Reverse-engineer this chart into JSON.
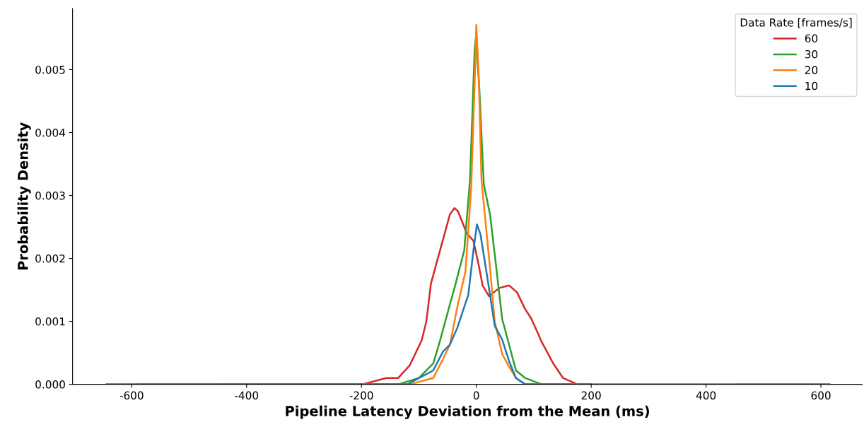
{
  "chart_data": {
    "type": "line",
    "xlabel": "Pipeline Latency Deviation from the Mean (ms)",
    "ylabel": "Probability Density",
    "legend_title": "Data Rate [frames/s]",
    "legend": "top right",
    "grid": false,
    "marker": "none",
    "line_style": "solid",
    "xlim": [
      -703,
      672
    ],
    "ylim": [
      0,
      0.00597
    ],
    "xticks": [
      -600,
      -400,
      -200,
      0,
      200,
      400,
      600
    ],
    "yticks": [
      {
        "value": 0,
        "label": "0.000"
      },
      {
        "value": 0.001,
        "label": "0.001"
      },
      {
        "value": 0.002,
        "label": "0.002"
      },
      {
        "value": 0.003,
        "label": "0.003"
      },
      {
        "value": 0.004,
        "label": "0.004"
      },
      {
        "value": 0.005,
        "label": "0.005"
      }
    ],
    "series": [
      {
        "name": "60",
        "color": "#d62728",
        "x": [
          -644,
          -239,
          -198,
          -157,
          -136,
          -116,
          -95,
          -87,
          -79,
          -70,
          -58,
          -46,
          -38,
          -32,
          -21,
          -17,
          -5,
          4,
          11,
          22,
          40,
          57,
          71,
          84,
          96,
          114,
          134,
          151,
          176,
          200,
          615
        ],
        "values": [
          0,
          0,
          0,
          0.0001,
          0.0001,
          0.0003,
          0.0007,
          0.001,
          0.0016,
          0.0019,
          0.0023,
          0.0027,
          0.0028,
          0.00275,
          0.0025,
          0.0024,
          0.00228,
          0.0019,
          0.00157,
          0.0014,
          0.00153,
          0.00157,
          0.00146,
          0.00121,
          0.00104,
          0.00067,
          0.00033,
          0.0001,
          0,
          0,
          0
        ]
      },
      {
        "name": "30",
        "color": "#2ca02c",
        "x": [
          -592,
          -136,
          -100,
          -75,
          -63,
          -46,
          -38,
          -21,
          -11,
          -3,
          -1,
          5,
          13,
          24,
          34,
          45,
          57,
          69,
          85,
          114,
          200
        ],
        "values": [
          0,
          0,
          0.0001,
          0.00033,
          0.0007,
          0.00127,
          0.00153,
          0.00213,
          0.00325,
          0.00531,
          0.0055,
          0.00475,
          0.00318,
          0.00269,
          0.00191,
          0.00104,
          0.00063,
          0.00022,
          0.0001,
          0,
          0
        ]
      },
      {
        "name": "20",
        "color": "#ff7f0e",
        "x": [
          -447,
          -116,
          -75,
          -58,
          -46,
          -33,
          -19,
          -9,
          -3,
          0,
          4,
          9,
          16,
          24,
          32,
          45,
          57,
          69,
          85,
          450
        ],
        "values": [
          0,
          0,
          0.0001,
          0.0004,
          0.00063,
          0.00123,
          0.00179,
          0.0031,
          0.00475,
          0.00571,
          0.00494,
          0.00325,
          0.00258,
          0.00183,
          0.001,
          0.00048,
          0.00028,
          0.0001,
          0,
          0
        ]
      },
      {
        "name": "10",
        "color": "#1f77b4",
        "x": [
          -447,
          -120,
          -75,
          -58,
          -46,
          -33,
          -21,
          -14,
          -5,
          1,
          7,
          20,
          32,
          45,
          57,
          69,
          85,
          200
        ],
        "values": [
          0,
          0,
          0.00022,
          0.00052,
          0.00063,
          0.0009,
          0.00123,
          0.00142,
          0.00213,
          0.00254,
          0.00239,
          0.00165,
          0.00093,
          0.00071,
          0.00037,
          0.0001,
          0,
          0
        ]
      }
    ]
  }
}
